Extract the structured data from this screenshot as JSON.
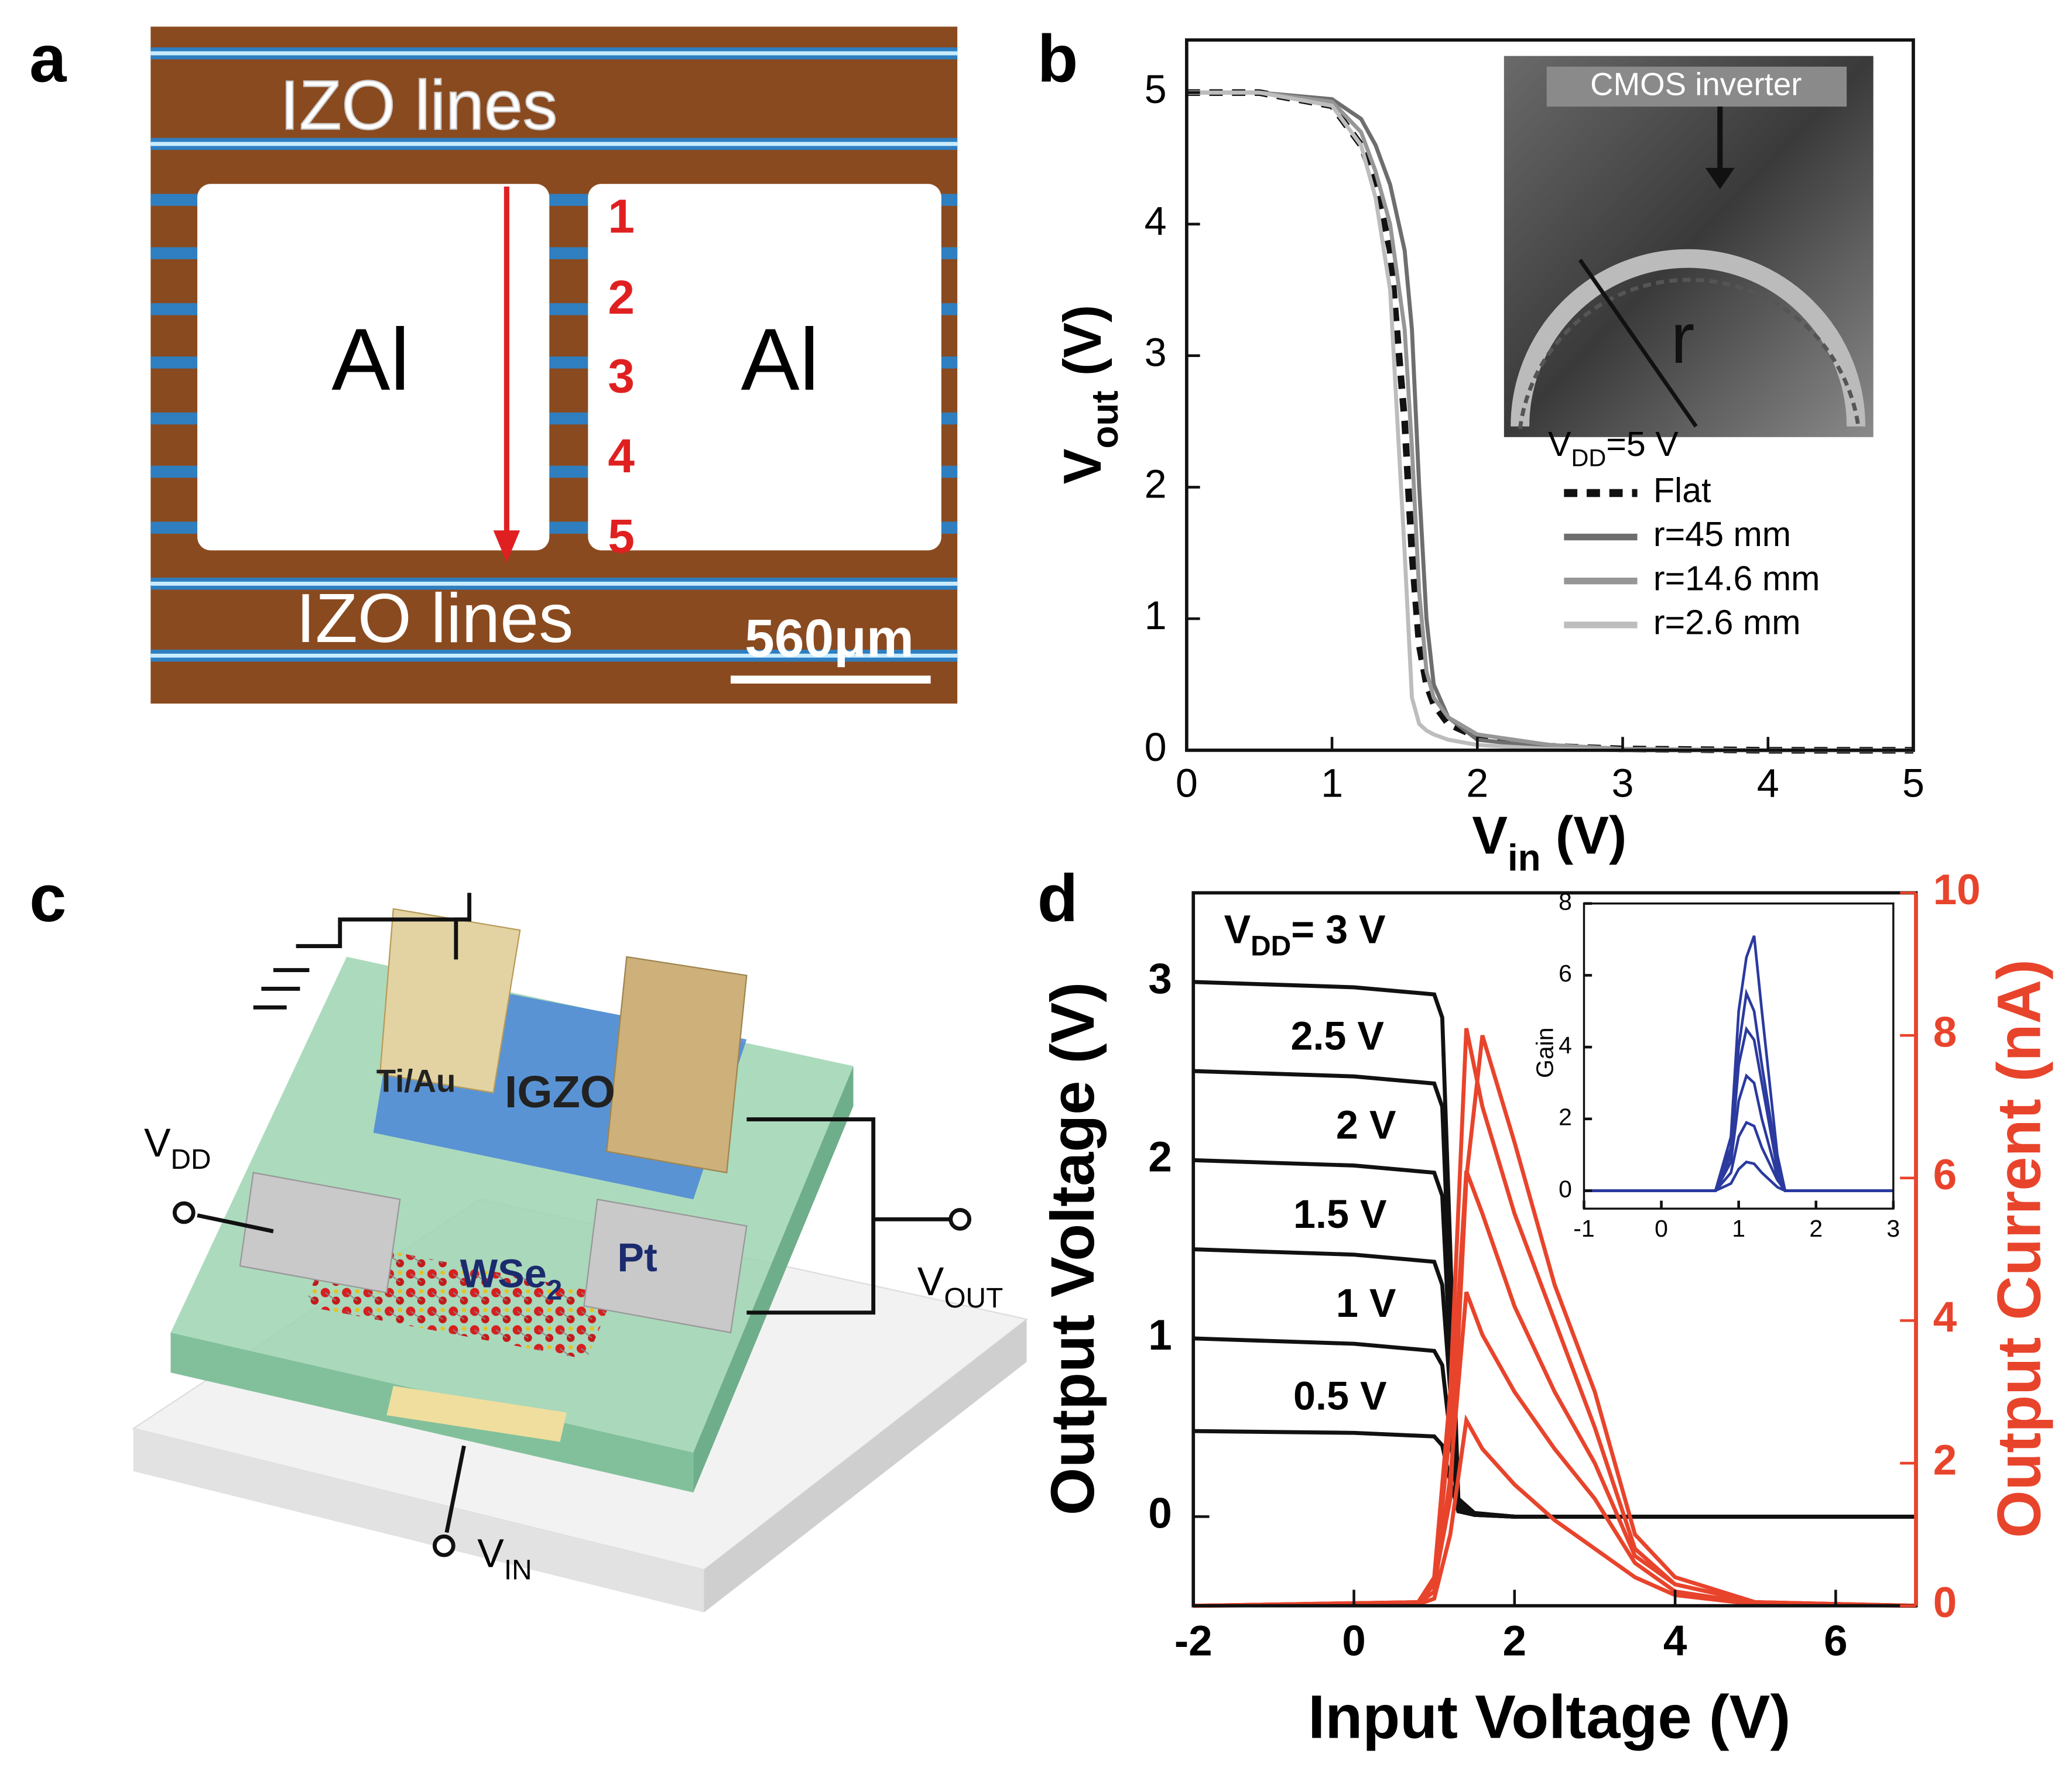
{
  "panel_labels": [
    "a",
    "b",
    "c",
    "d"
  ],
  "photo_a": {
    "izo_top": "IZO lines",
    "al_left": "Al",
    "al_right": "Al",
    "numbers": [
      "1",
      "2",
      "3",
      "4",
      "5"
    ],
    "izo_bottom": "IZO lines",
    "scale_bar": "560μm"
  },
  "diagram_c": {
    "ti_au": "Ti/Au",
    "igzo": "IGZO",
    "wse2": [
      "WSe",
      "2"
    ],
    "pt": "Pt",
    "vdd": [
      "V",
      "DD"
    ],
    "vout": [
      "V",
      "OUT"
    ],
    "vin": [
      "V",
      "IN"
    ]
  },
  "chart_data": [
    {
      "type": "line",
      "xlabel": [
        "V",
        "in",
        " (V)"
      ],
      "ylabel": [
        "V",
        "out",
        " (V)"
      ],
      "xlim": [
        0,
        5
      ],
      "ylim": [
        0,
        5.4
      ],
      "xticks": [
        0,
        1,
        2,
        3,
        4,
        5
      ],
      "yticks": [
        0,
        1,
        2,
        3,
        4,
        5
      ],
      "legend": "right",
      "legend_title": [
        "V",
        "DD",
        "=5 V"
      ],
      "inset_labels": [
        "CMOS inverter",
        "r"
      ],
      "x": [
        0,
        0.5,
        1,
        1.2,
        1.3,
        1.4,
        1.5,
        1.55,
        1.6,
        1.65,
        1.7,
        1.8,
        2,
        2.5,
        3,
        4,
        5
      ],
      "series": [
        {
          "name": "Flat",
          "color": "#111111",
          "dashed": true,
          "values": [
            5,
            5,
            4.9,
            4.6,
            4.3,
            3.8,
            2.5,
            1.5,
            0.8,
            0.5,
            0.35,
            0.2,
            0.1,
            0.03,
            0.01,
            0,
            0
          ]
        },
        {
          "name": "r=45 mm",
          "color": "#6e6e6e",
          "values": [
            5,
            5,
            4.95,
            4.8,
            4.6,
            4.3,
            3.8,
            3.2,
            2.0,
            1.0,
            0.5,
            0.25,
            0.08,
            0.02,
            0,
            0,
            0
          ]
        },
        {
          "name": "r=14.6 mm",
          "color": "#969696",
          "values": [
            5,
            5,
            4.93,
            4.7,
            4.4,
            4.0,
            3.2,
            2.3,
            1.2,
            0.6,
            0.4,
            0.25,
            0.12,
            0.04,
            0.01,
            0,
            0
          ]
        },
        {
          "name": "r=2.6 mm",
          "color": "#bdbdbd",
          "values": [
            5,
            5,
            4.9,
            4.6,
            4.2,
            3.5,
            1.5,
            0.4,
            0.2,
            0.15,
            0.12,
            0.08,
            0.04,
            0.01,
            0,
            0,
            0
          ]
        }
      ]
    },
    {
      "type": "line",
      "xlabel": "Input Voltage (V)",
      "ylabel": "Output Voltage (V)",
      "y2label": "Output Current (nA)",
      "y2_color": "#e8442c",
      "xlim": [
        -2,
        7
      ],
      "ylim": [
        -0.5,
        3.5
      ],
      "y2lim": [
        0,
        10
      ],
      "xticks": [
        -2,
        0,
        2,
        4,
        6
      ],
      "yticks": [
        0,
        1,
        2,
        3
      ],
      "y2ticks": [
        0,
        2,
        4,
        6,
        8,
        10
      ],
      "series": [
        {
          "name_parts": [
            "V",
            "DD",
            "= 3 V"
          ],
          "color": "#111111",
          "x": [
            -2,
            0,
            1,
            1.1,
            1.2,
            1.3,
            1.5,
            2,
            7
          ],
          "values": [
            3.0,
            2.97,
            2.93,
            2.8,
            1.5,
            0.1,
            0.02,
            0,
            0
          ]
        },
        {
          "name": "2.5 V",
          "color": "#111111",
          "x": [
            -2,
            0,
            1,
            1.1,
            1.2,
            1.3,
            1.5,
            2,
            7
          ],
          "values": [
            2.5,
            2.47,
            2.43,
            2.3,
            1.2,
            0.1,
            0.02,
            0,
            0
          ]
        },
        {
          "name": "2 V",
          "color": "#111111",
          "x": [
            -2,
            0,
            1,
            1.1,
            1.2,
            1.3,
            1.5,
            2,
            7
          ],
          "values": [
            2.0,
            1.97,
            1.93,
            1.8,
            0.9,
            0.08,
            0.02,
            0,
            0
          ]
        },
        {
          "name": "1.5 V",
          "color": "#111111",
          "x": [
            -2,
            0,
            1,
            1.1,
            1.2,
            1.3,
            1.5,
            2,
            7
          ],
          "values": [
            1.5,
            1.47,
            1.43,
            1.3,
            0.7,
            0.06,
            0.01,
            0,
            0
          ]
        },
        {
          "name": "1 V",
          "color": "#111111",
          "x": [
            -2,
            0,
            1,
            1.1,
            1.2,
            1.3,
            1.5,
            2,
            7
          ],
          "values": [
            1.0,
            0.97,
            0.93,
            0.85,
            0.45,
            0.05,
            0.01,
            0,
            0
          ]
        },
        {
          "name": "0.5 V",
          "color": "#111111",
          "x": [
            -2,
            0,
            1,
            1.1,
            1.2,
            1.3,
            1.5,
            2,
            7
          ],
          "values": [
            0.48,
            0.47,
            0.45,
            0.4,
            0.2,
            0.03,
            0.01,
            0,
            0
          ]
        },
        {
          "axis": "y2",
          "color": "#e8442c",
          "x": [
            -2,
            0.8,
            1,
            1.2,
            1.4,
            1.6,
            2,
            2.5,
            3,
            3.5,
            4,
            5,
            7
          ],
          "values": [
            0,
            0.05,
            0.4,
            3,
            8.1,
            7,
            5.5,
            4,
            2.5,
            0.8,
            0.3,
            0.05,
            0
          ]
        },
        {
          "axis": "y2",
          "color": "#e8442c",
          "x": [
            -2,
            0.8,
            1,
            1.2,
            1.4,
            1.6,
            2,
            2.5,
            3,
            3.5,
            4,
            5,
            7
          ],
          "values": [
            0,
            0.05,
            0.3,
            1.5,
            6,
            8,
            6.5,
            4.5,
            3,
            1.0,
            0.4,
            0.05,
            0
          ]
        },
        {
          "axis": "y2",
          "color": "#e8442c",
          "x": [
            -2,
            0.8,
            1,
            1.2,
            1.4,
            1.6,
            2,
            2.5,
            3,
            3.5,
            4,
            5,
            7
          ],
          "values": [
            0,
            0.05,
            0.3,
            2.5,
            6.1,
            5.5,
            4.2,
            3,
            2,
            0.7,
            0.3,
            0.05,
            0
          ]
        },
        {
          "axis": "y2",
          "color": "#e8442c",
          "x": [
            -2,
            0.8,
            1,
            1.2,
            1.4,
            1.6,
            2,
            2.5,
            3,
            3.5,
            4,
            5,
            7
          ],
          "values": [
            0,
            0.03,
            0.2,
            1.8,
            4.4,
            3.8,
            3,
            2.2,
            1.5,
            0.6,
            0.2,
            0.03,
            0
          ]
        },
        {
          "axis": "y2",
          "color": "#e8442c",
          "x": [
            -2,
            0.8,
            1,
            1.2,
            1.4,
            1.6,
            2,
            2.5,
            3,
            3.5,
            4,
            5,
            7
          ],
          "values": [
            0,
            0.02,
            0.1,
            1,
            2.6,
            2.2,
            1.7,
            1.2,
            0.8,
            0.4,
            0.15,
            0.02,
            0
          ]
        }
      ]
    },
    {
      "type": "line",
      "ylabel": "Gain",
      "xlim": [
        -1,
        3
      ],
      "ylim": [
        -0.5,
        8
      ],
      "xticks": [
        -1,
        0,
        1,
        2,
        3
      ],
      "yticks": [
        0,
        2,
        4,
        6,
        8
      ],
      "x": [
        -1,
        0.7,
        0.9,
        1,
        1.1,
        1.2,
        1.3,
        1.5,
        1.6,
        3
      ],
      "series": [
        {
          "color": "#2b3a9e",
          "values": [
            0,
            0,
            1.5,
            5,
            6.5,
            7.1,
            5,
            1,
            0,
            0
          ]
        },
        {
          "color": "#2b3a9e",
          "values": [
            0,
            0,
            1.2,
            4,
            5.5,
            5,
            3.5,
            0.8,
            0,
            0
          ]
        },
        {
          "color": "#2b3a9e",
          "values": [
            0,
            0,
            1,
            3.5,
            4.5,
            4.2,
            3,
            0.6,
            0,
            0
          ]
        },
        {
          "color": "#2b3a9e",
          "values": [
            0,
            0,
            0.8,
            2.5,
            3.2,
            3,
            2,
            0.4,
            0,
            0
          ]
        },
        {
          "color": "#2b3a9e",
          "values": [
            0,
            0,
            0.5,
            1.5,
            1.9,
            1.8,
            1.2,
            0.3,
            0,
            0
          ]
        },
        {
          "color": "#2b3a9e",
          "values": [
            0,
            0,
            0.2,
            0.6,
            0.8,
            0.75,
            0.5,
            0.1,
            0,
            0
          ]
        }
      ]
    }
  ]
}
